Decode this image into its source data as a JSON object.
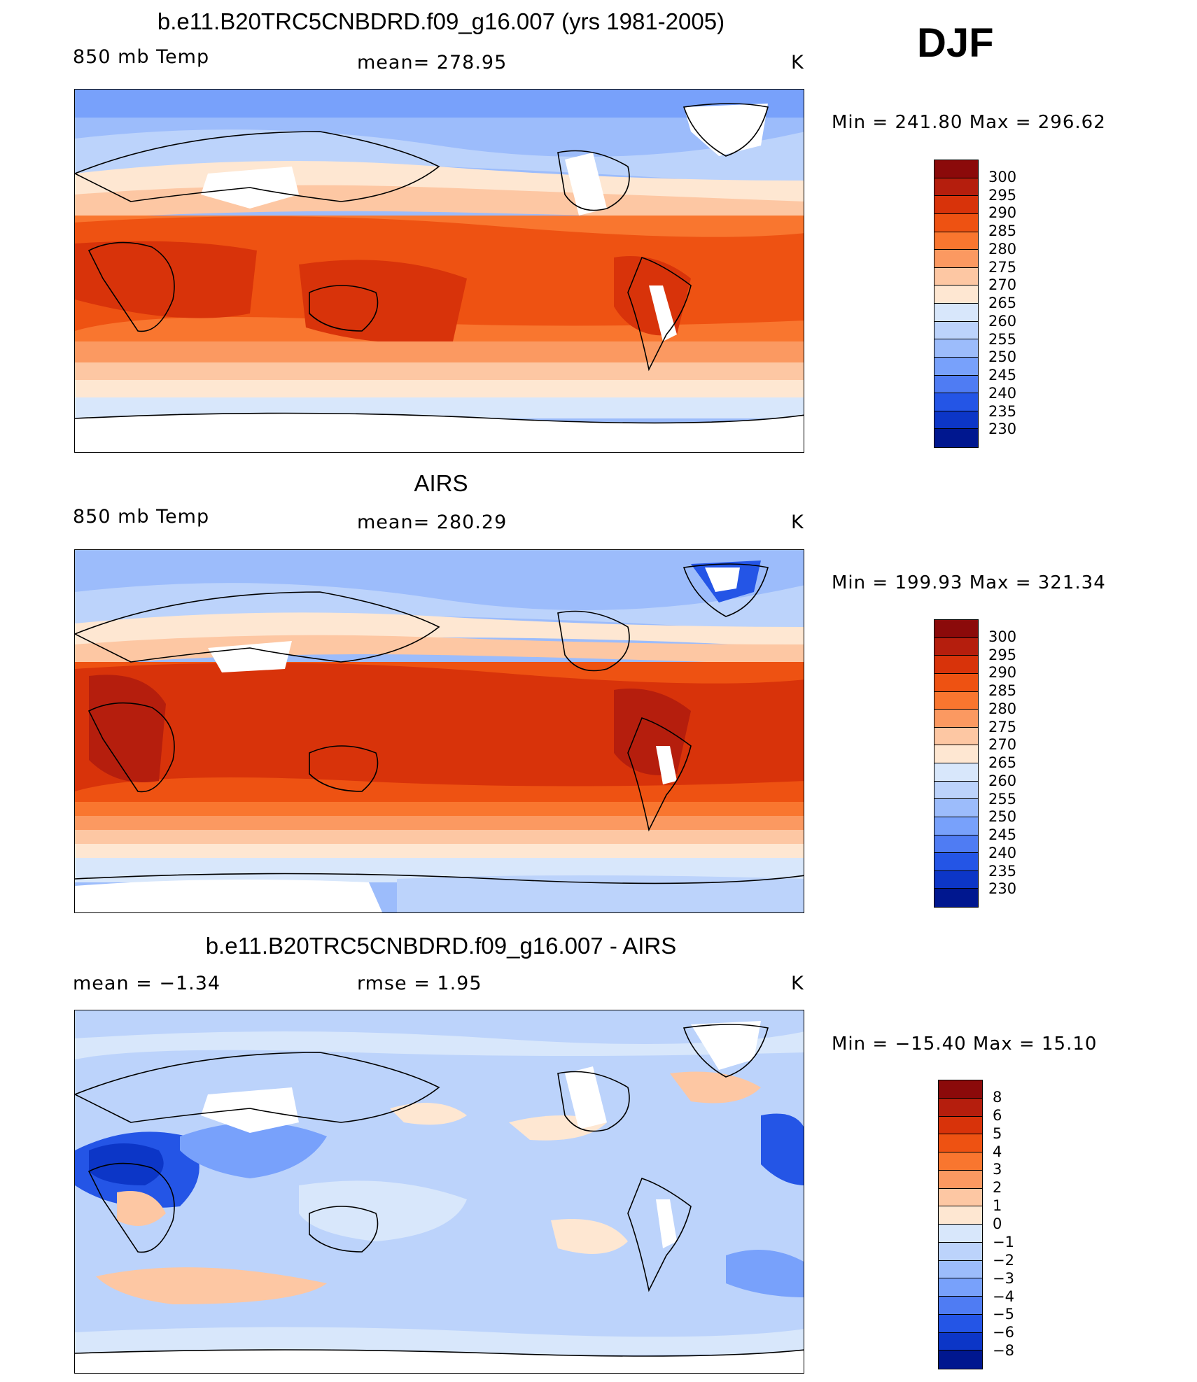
{
  "season": "DJF",
  "panels": [
    {
      "id": "model",
      "title": "b.e11.B20TRC5CNBDRD.f09_g16.007 (yrs 1981-2005)",
      "left_text": "850 mb Temp",
      "center_text": "mean=  278.95",
      "units": "K",
      "minmax": "Min  =  241.80  Max  =  296.62",
      "labels": [
        "300",
        "295",
        "290",
        "285",
        "280",
        "275",
        "270",
        "265",
        "260",
        "255",
        "250",
        "245",
        "240",
        "235",
        "230"
      ]
    },
    {
      "id": "obs",
      "title": "AIRS",
      "left_text": "850 mb Temp",
      "center_text": "mean=  280.29",
      "units": "K",
      "minmax": "Min  =  199.93  Max  =  321.34",
      "labels": [
        "300",
        "295",
        "290",
        "285",
        "280",
        "275",
        "270",
        "265",
        "260",
        "255",
        "250",
        "245",
        "240",
        "235",
        "230"
      ]
    },
    {
      "id": "diff",
      "title": "b.e11.B20TRC5CNBDRD.f09_g16.007 - AIRS",
      "left_text": "mean  =    −1.34",
      "center_text": "rmse  =     1.95",
      "units": "K",
      "minmax": "Min  =  −15.40  Max  =    15.10",
      "labels": [
        "8",
        "6",
        "5",
        "4",
        "3",
        "2",
        "1",
        "0",
        "−1",
        "−2",
        "−3",
        "−4",
        "−5",
        "−6",
        "−8"
      ]
    }
  ],
  "colors": {
    "temp_scale": [
      "#8b0a0a",
      "#b51e0d",
      "#d8330a",
      "#ee5212",
      "#f9762f",
      "#fb9961",
      "#fdc7a3",
      "#fee7d2",
      "#d8e7fb",
      "#bcd3fb",
      "#9cbcfb",
      "#78a1fb",
      "#4f7cf3",
      "#2455e6",
      "#0c36c7",
      "#00178f"
    ],
    "diff_scale": [
      "#8b0a0a",
      "#b51e0d",
      "#d8330a",
      "#ee5212",
      "#f9762f",
      "#fb9961",
      "#fdc7a3",
      "#fee7d2",
      "#d8e7fb",
      "#bcd3fb",
      "#9cbcfb",
      "#78a1fb",
      "#4f7cf3",
      "#2455e6",
      "#0c36c7",
      "#00178f"
    ]
  }
}
